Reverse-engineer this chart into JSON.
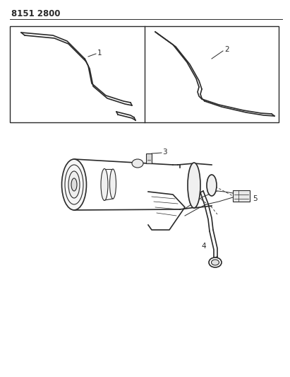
{
  "title": "8151 2800",
  "bg_color": "#ffffff",
  "line_color": "#2a2a2a",
  "label_color": "#2a2a2a",
  "title_fontsize": 8.5,
  "label_fontsize": 7.5,
  "fig_width": 4.11,
  "fig_height": 5.33,
  "dpi": 100
}
